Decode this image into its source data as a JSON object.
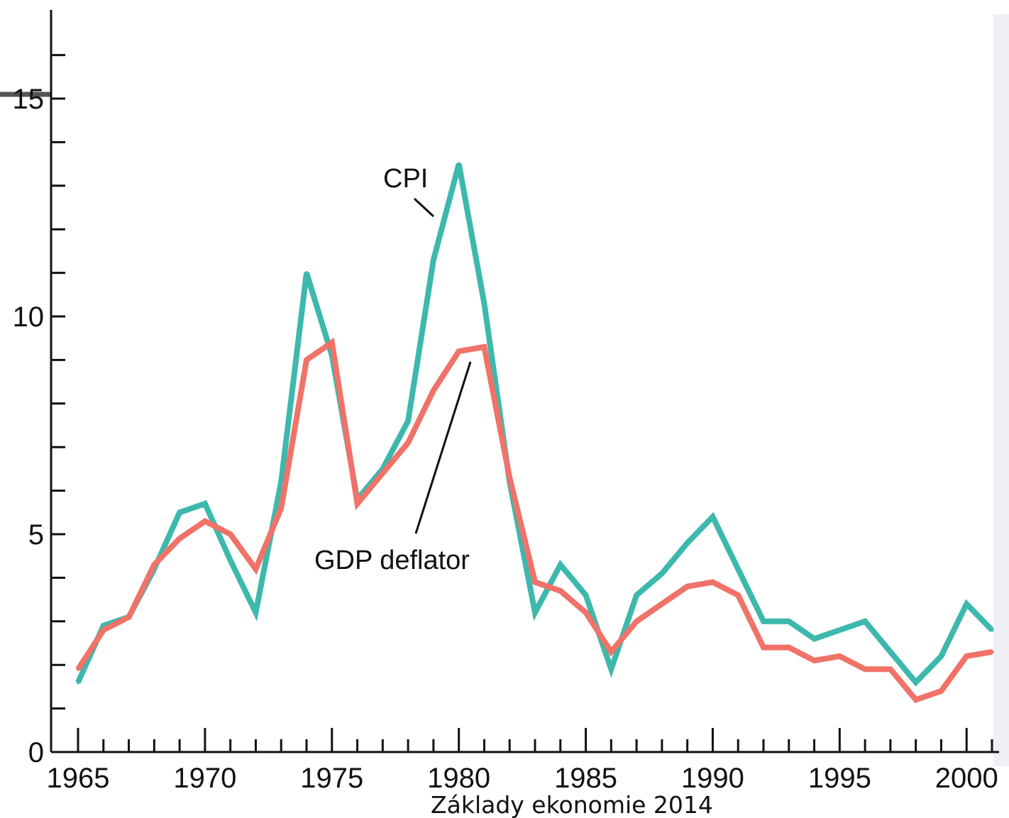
{
  "chart_data": {
    "type": "line",
    "title": "",
    "xlabel": "",
    "ylabel": "",
    "xlim": [
      1965,
      2001
    ],
    "ylim": [
      0,
      16
    ],
    "x_ticks": [
      1965,
      1970,
      1975,
      1980,
      1985,
      1990,
      1995,
      2000
    ],
    "y_ticks": [
      0,
      5,
      10,
      15
    ],
    "x_tick_labels": [
      "1965",
      "1970",
      "1975",
      "1980",
      "1985",
      "1990",
      "1995",
      "2000"
    ],
    "y_tick_labels": [
      "0",
      "5",
      "10",
      "15"
    ],
    "grid": false,
    "x": [
      1965,
      1966,
      1967,
      1968,
      1969,
      1970,
      1971,
      1972,
      1973,
      1974,
      1975,
      1976,
      1977,
      1978,
      1979,
      1980,
      1981,
      1982,
      1983,
      1984,
      1985,
      1986,
      1987,
      1988,
      1989,
      1990,
      1991,
      1992,
      1993,
      1994,
      1995,
      1996,
      1997,
      1998,
      1999,
      2000,
      2001
    ],
    "series": [
      {
        "name": "CPI",
        "color": "#3db8ad",
        "values": [
          1.6,
          2.9,
          3.1,
          4.2,
          5.5,
          5.7,
          4.4,
          3.2,
          6.2,
          11.0,
          9.1,
          5.8,
          6.5,
          7.6,
          11.3,
          13.5,
          10.3,
          6.2,
          3.2,
          4.3,
          3.6,
          1.9,
          3.6,
          4.1,
          4.8,
          5.4,
          4.2,
          3.0,
          3.0,
          2.6,
          2.8,
          3.0,
          2.3,
          1.6,
          2.2,
          3.4,
          2.8
        ],
        "label": "CPI"
      },
      {
        "name": "GDP deflator",
        "color": "#f07268",
        "values": [
          1.9,
          2.8,
          3.1,
          4.3,
          4.9,
          5.3,
          5.0,
          4.2,
          5.6,
          9.0,
          9.4,
          5.7,
          6.4,
          7.1,
          8.3,
          9.2,
          9.3,
          6.3,
          3.9,
          3.7,
          3.2,
          2.3,
          3.0,
          3.4,
          3.8,
          3.9,
          3.6,
          2.4,
          2.4,
          2.1,
          2.2,
          1.9,
          1.9,
          1.2,
          1.4,
          2.2,
          2.3
        ],
        "label": "GDP deflator"
      }
    ]
  },
  "footer": "Základy ekonomie 2014"
}
